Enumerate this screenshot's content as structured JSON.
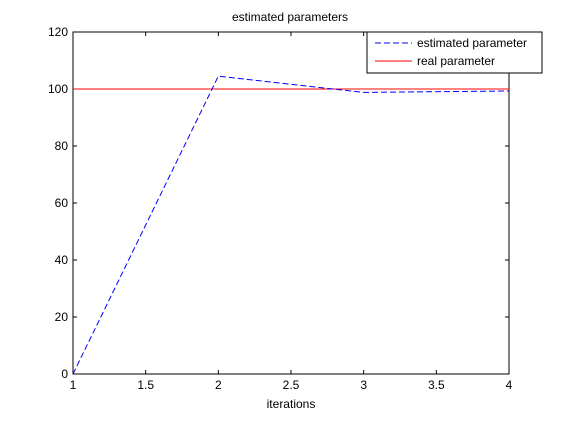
{
  "chart_data": {
    "type": "line",
    "title": "estimated parameters",
    "xlabel": "iterations",
    "ylabel": "",
    "xlim": [
      1,
      4
    ],
    "ylim": [
      0,
      120
    ],
    "x_ticks": [
      "1",
      "1.5",
      "2",
      "2.5",
      "3",
      "3.5",
      "4"
    ],
    "y_ticks": [
      "0",
      "20",
      "40",
      "60",
      "80",
      "100",
      "120"
    ],
    "grid": false,
    "legend_placement": "top-right",
    "series": [
      {
        "name": "estimated parameter",
        "style": "dashed",
        "color": "#0000ff",
        "x": [
          1,
          2,
          3,
          4
        ],
        "y": [
          0,
          104.5,
          98.8,
          99.3
        ]
      },
      {
        "name": "real parameter",
        "style": "solid",
        "color": "#ff0000",
        "x": [
          1,
          4
        ],
        "y": [
          100,
          100
        ]
      }
    ]
  }
}
